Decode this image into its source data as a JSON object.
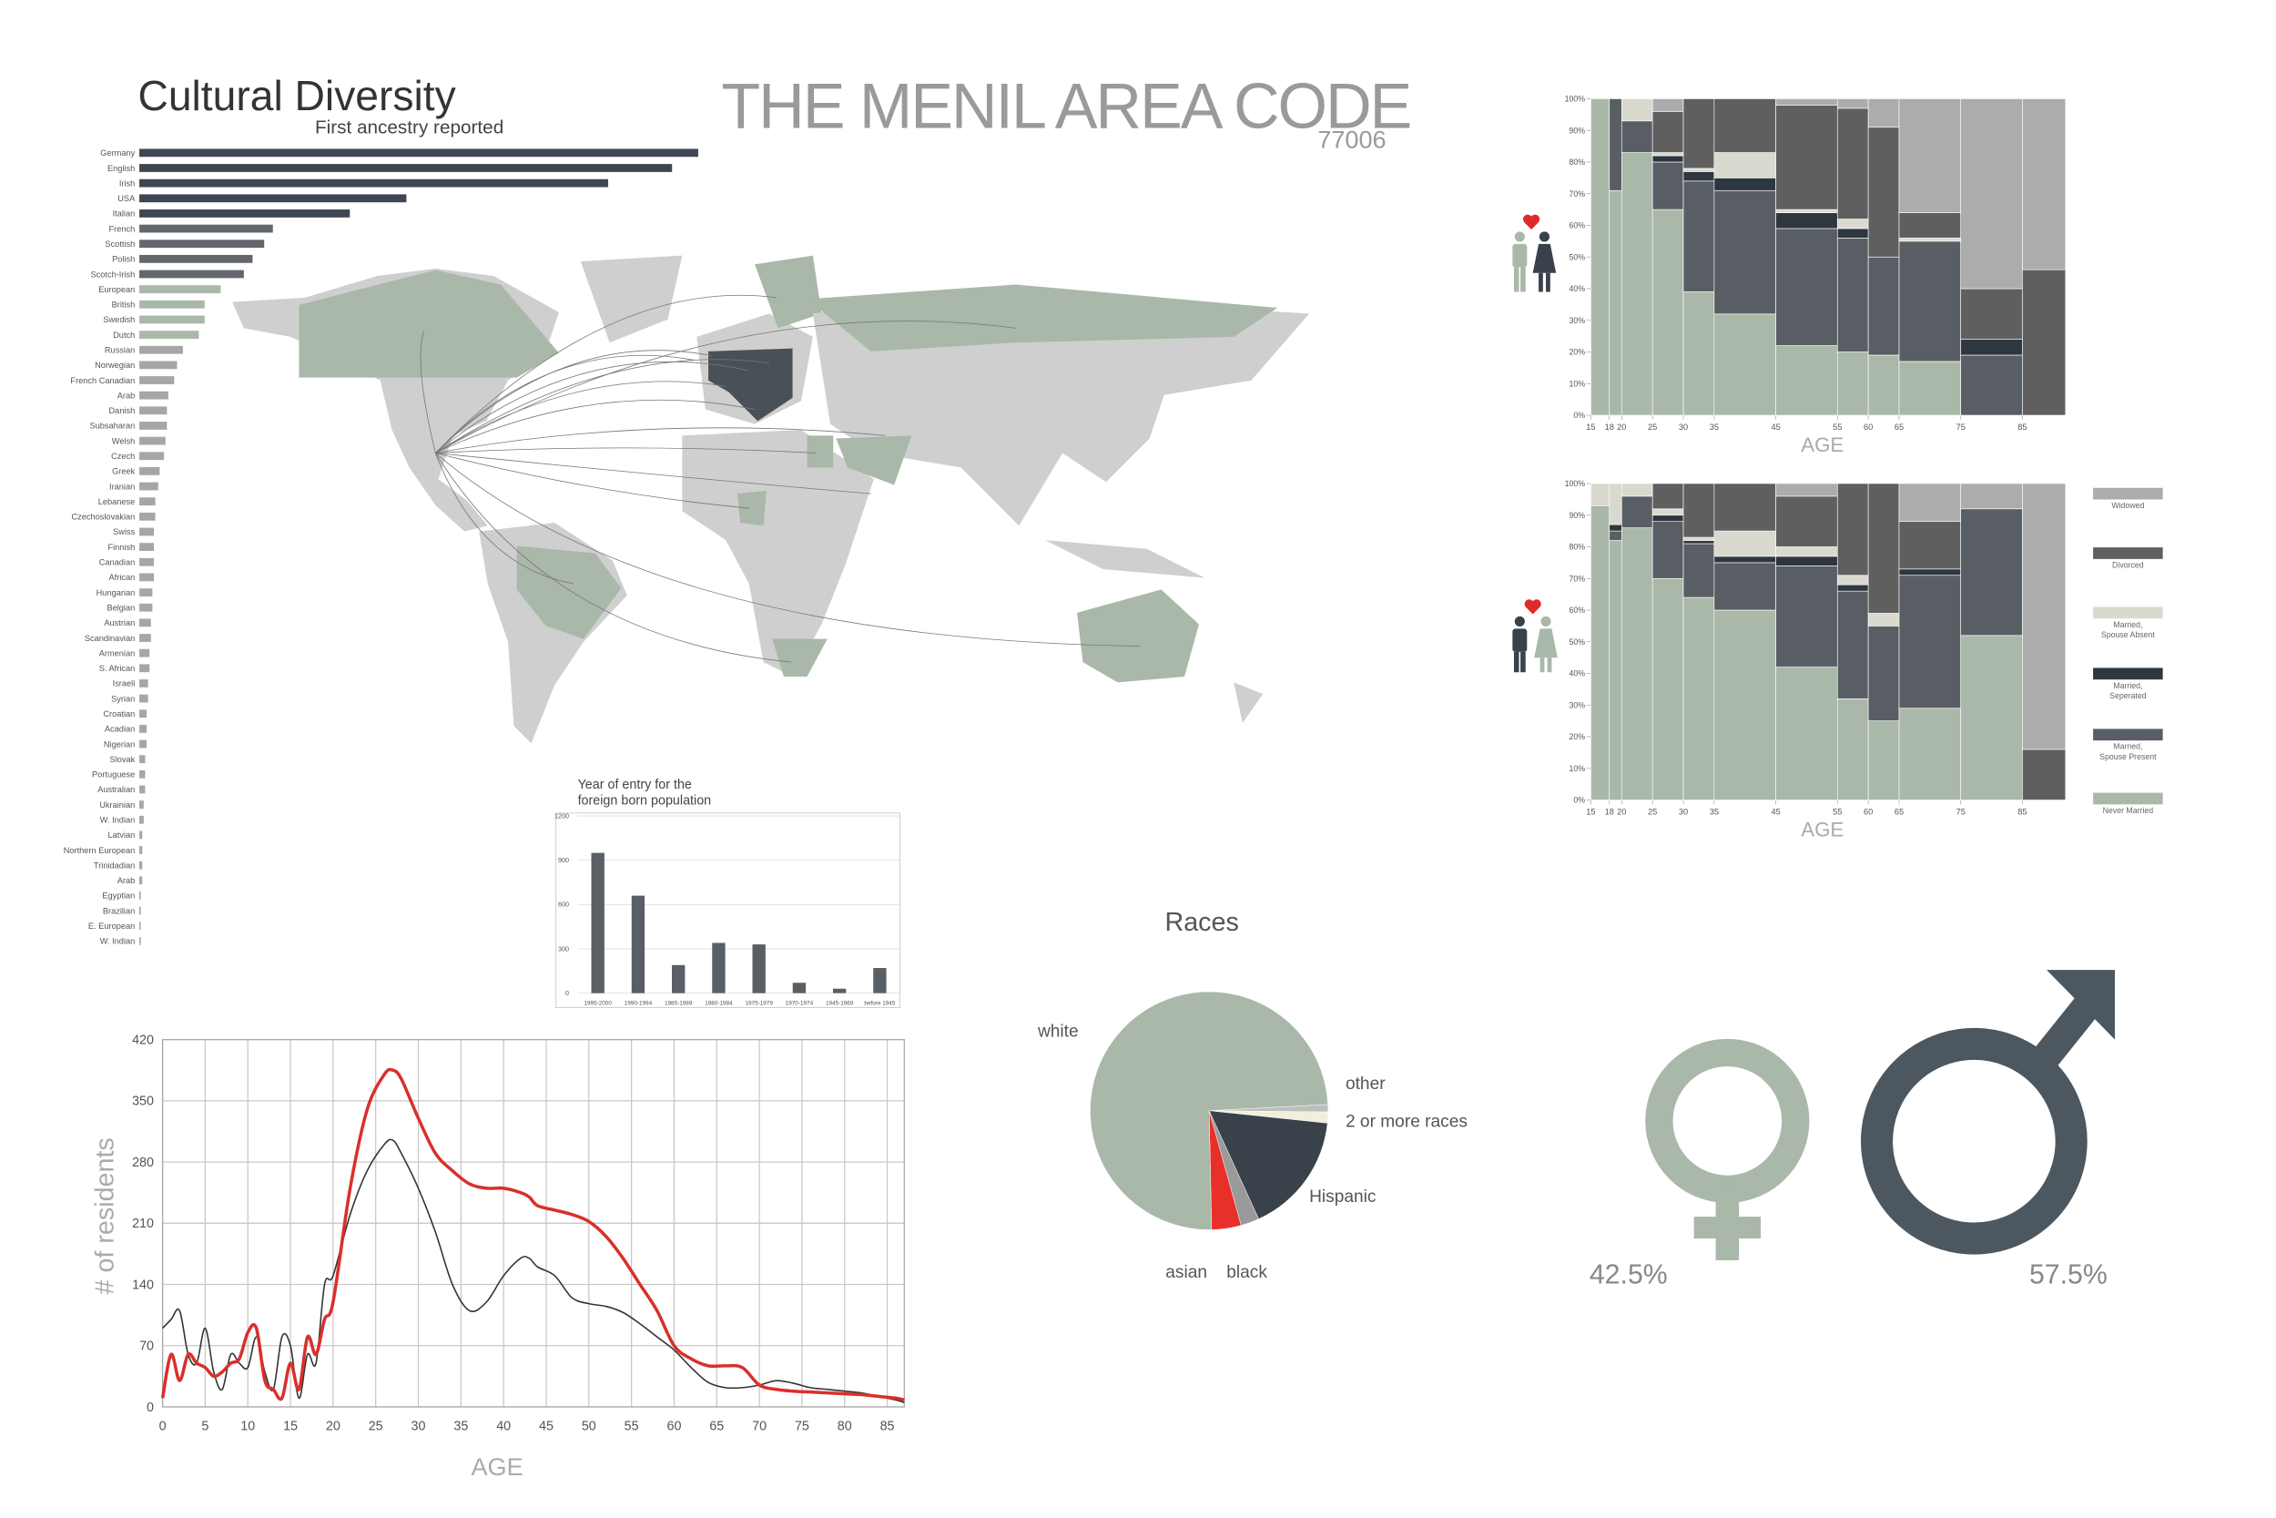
{
  "header": {
    "title": "THE MENIL AREA CODE",
    "subtitle": "77006"
  },
  "chart_data": [
    {
      "type": "bar",
      "orientation": "horizontal",
      "title": "Cultural Diversity",
      "subtitle": "First ancestry reported",
      "categories": [
        "Germany",
        "English",
        "Irish",
        "USA",
        "Italian",
        "French",
        "Scottish",
        "Polish",
        "Scotch-Irish",
        "European",
        "British",
        "Swedish",
        "Dutch",
        "Russian",
        "Norwegian",
        "French Canadian",
        "Arab",
        "Danish",
        "Subsaharan",
        "Welsh",
        "Czech",
        "Greek",
        "Iranian",
        "Lebanese",
        "Czechoslovakian",
        "Swiss",
        "Finnish",
        "Canadian",
        "African",
        "Hungarian",
        "Belgian",
        "Austrian",
        "Scandinavian",
        "Armenian",
        "S. African",
        "Israeli",
        "Syrian",
        "Croatian",
        "Acadian",
        "Nigerian",
        "Slovak",
        "Portuguese",
        "Australian",
        "Ukrainian",
        "W. Indian",
        "Latvian",
        "Northern European",
        "Trinidadian",
        "Arab",
        "Egyptian",
        "Brazilian",
        "E. European",
        "W. Indian"
      ],
      "values": [
        385,
        367,
        323,
        184,
        145,
        92,
        86,
        78,
        72,
        56,
        45,
        45,
        41,
        30,
        26,
        24,
        20,
        19,
        19,
        18,
        17,
        14,
        13,
        11,
        11,
        10,
        10,
        10,
        10,
        9,
        9,
        8,
        8,
        7,
        7,
        6,
        6,
        5,
        5,
        5,
        4,
        4,
        4,
        3,
        3,
        2,
        2,
        2,
        2,
        1,
        1,
        1,
        1
      ],
      "colors": [
        "#3e4751",
        "#3e4751",
        "#3e4751",
        "#3e4751",
        "#3e4751",
        "#63676b",
        "#63676b",
        "#63676b",
        "#63676b",
        "#a9b8a8",
        "#a9b8a8",
        "#a9b8a8",
        "#a9b8a8",
        "#a6a6a6",
        "#a6a6a6",
        "#a6a6a6",
        "#a6a6a6",
        "#a6a6a6",
        "#a6a6a6",
        "#a6a6a6",
        "#a6a6a6",
        "#a6a6a6",
        "#a6a6a6",
        "#a6a6a6",
        "#a6a6a6",
        "#a6a6a6",
        "#a6a6a6",
        "#a6a6a6",
        "#a6a6a6",
        "#a6a6a6",
        "#a6a6a6",
        "#a6a6a6",
        "#a6a6a6",
        "#a6a6a6",
        "#a6a6a6",
        "#a6a6a6",
        "#a6a6a6",
        "#a6a6a6",
        "#a6a6a6",
        "#a6a6a6",
        "#a6a6a6",
        "#a6a6a6",
        "#a6a6a6",
        "#a6a6a6",
        "#a6a6a6",
        "#a6a6a6",
        "#a6a6a6",
        "#a6a6a6",
        "#a6a6a6",
        "#a6a6a6",
        "#a6a6a6",
        "#a6a6a6",
        "#a6a6a6"
      ]
    },
    {
      "type": "bar",
      "orientation": "vertical",
      "title": [
        "Year of entry for the",
        "foreign born population"
      ],
      "categories": [
        "1995-2000",
        "1990-1994",
        "1985-1989",
        "1980-1984",
        "1975-1979",
        "1970-1974",
        "1945-1969",
        "before 1945"
      ],
      "values": [
        950,
        660,
        190,
        340,
        330,
        70,
        30,
        170
      ],
      "color": "#5a5f65",
      "ylim": [
        0,
        1200
      ],
      "yticks": [
        0,
        300,
        600,
        900,
        1200
      ],
      "grid": true
    },
    {
      "type": "line",
      "xlabel": "AGE",
      "ylabel": "# of residents",
      "x": [
        0,
        1,
        2,
        3,
        4,
        5,
        6,
        7,
        8,
        9,
        10,
        11,
        12,
        13,
        14,
        15,
        16,
        17,
        18,
        19,
        20,
        22,
        24,
        26,
        27,
        28,
        30,
        32,
        34,
        36,
        38,
        40,
        42,
        43,
        44,
        46,
        48,
        50,
        52,
        54,
        56,
        58,
        60,
        62,
        64,
        66,
        68,
        70,
        72,
        74,
        76,
        78,
        80,
        82,
        84,
        86,
        87
      ],
      "series": [
        {
          "color": "#333333",
          "values": [
            90,
            100,
            110,
            60,
            50,
            90,
            40,
            20,
            60,
            50,
            45,
            80,
            40,
            20,
            80,
            70,
            10,
            60,
            50,
            140,
            150,
            220,
            270,
            300,
            305,
            290,
            250,
            200,
            140,
            110,
            120,
            150,
            170,
            170,
            160,
            150,
            125,
            118,
            115,
            108,
            95,
            80,
            65,
            45,
            28,
            22,
            22,
            25,
            30,
            27,
            22,
            20,
            18,
            16,
            12,
            8,
            5
          ]
        },
        {
          "color": "#d9302a",
          "values": [
            10,
            60,
            30,
            60,
            50,
            45,
            35,
            40,
            50,
            55,
            85,
            90,
            30,
            20,
            10,
            50,
            20,
            80,
            60,
            100,
            120,
            250,
            340,
            380,
            385,
            375,
            330,
            290,
            270,
            255,
            250,
            250,
            245,
            240,
            230,
            225,
            220,
            212,
            195,
            170,
            140,
            110,
            70,
            55,
            47,
            47,
            45,
            25,
            20,
            18,
            17,
            16,
            15,
            14,
            12,
            10,
            8
          ]
        }
      ],
      "xlim": [
        0,
        87
      ],
      "xticks": [
        0,
        5,
        10,
        15,
        20,
        25,
        30,
        35,
        40,
        45,
        50,
        55,
        60,
        65,
        70,
        75,
        80,
        85
      ],
      "ylim": [
        0,
        420
      ],
      "yticks": [
        0,
        70,
        140,
        210,
        280,
        350,
        420
      ],
      "grid": true
    },
    {
      "type": "pie",
      "title": "Races",
      "categories": [
        "other",
        "2 or more races",
        "Hispanic",
        "black",
        "asian",
        "white"
      ],
      "values": [
        1,
        1.5,
        16.5,
        2.5,
        4,
        74.5
      ],
      "colors": [
        "#bdbdbd",
        "#f1eedc",
        "#39424a",
        "#9a9a9a",
        "#e8302a",
        "#a9b8a8"
      ]
    },
    {
      "type": "pictogram",
      "values": [
        42.5,
        57.5
      ],
      "value_labels": [
        "42.5%",
        "57.5%"
      ],
      "colors": [
        "#a9b8a8",
        "#4d575f"
      ]
    },
    {
      "type": "marimekko",
      "xlabel": "AGE",
      "xlim": [
        15,
        92
      ],
      "xticks": [
        15,
        18,
        20,
        25,
        30,
        35,
        45,
        55,
        60,
        65,
        75,
        85
      ],
      "ylim": [
        0,
        100
      ],
      "yticks": [
        {
          "value": 0,
          "label": "0%"
        },
        {
          "value": 10,
          "label": "10%"
        },
        {
          "value": 20,
          "label": "20%"
        },
        {
          "value": 30,
          "label": "30%"
        },
        {
          "value": 40,
          "label": "40%"
        },
        {
          "value": 50,
          "label": "50%"
        },
        {
          "value": 60,
          "label": "60%"
        },
        {
          "value": 70,
          "label": "70%"
        },
        {
          "value": 80,
          "label": "80%"
        },
        {
          "value": 90,
          "label": "90%"
        },
        {
          "value": 100,
          "label": "100%"
        }
      ],
      "series": [
        {
          "name": "Widowed",
          "color": "#acacac",
          "values": [
            0,
            0,
            0,
            4,
            0,
            0,
            2,
            3,
            9,
            36,
            60,
            54
          ]
        },
        {
          "name": "Divorced",
          "color": "#5f5f5f",
          "values": [
            0,
            0,
            0,
            13,
            22,
            17,
            33,
            35,
            41,
            8,
            16,
            46
          ]
        },
        {
          "name": "Married, Spouse Absent",
          "color": "#d9d9d0",
          "values": [
            0,
            0,
            7,
            1,
            1,
            8,
            1,
            3,
            0,
            1,
            0,
            0
          ]
        },
        {
          "name": "Married, Seperated",
          "color": "#2e3640",
          "values": [
            0,
            0,
            0,
            2,
            3,
            4,
            5,
            3,
            0,
            0,
            5,
            0
          ]
        },
        {
          "name": "Married, Spouse Present",
          "color": "#595e64",
          "values": [
            0,
            29,
            10,
            15,
            35,
            39,
            37,
            36,
            31,
            38,
            19,
            0
          ]
        },
        {
          "name": "Never Married",
          "color": "#a9b8a8",
          "values": [
            100,
            71,
            83,
            65,
            39,
            32,
            22,
            20,
            19,
            17,
            0,
            0
          ]
        }
      ]
    },
    {
      "type": "marimekko",
      "xlabel": "AGE",
      "legend": true,
      "xlim": [
        15,
        92
      ],
      "xticks": [
        15,
        18,
        20,
        25,
        30,
        35,
        45,
        55,
        60,
        65,
        75,
        85
      ],
      "ylim": [
        0,
        100
      ],
      "yticks": [
        {
          "value": 0,
          "label": "0%"
        },
        {
          "value": 10,
          "label": "10%"
        },
        {
          "value": 20,
          "label": "20%"
        },
        {
          "value": 30,
          "label": "30%"
        },
        {
          "value": 40,
          "label": "40%"
        },
        {
          "value": 50,
          "label": "50%"
        },
        {
          "value": 60,
          "label": "60%"
        },
        {
          "value": 70,
          "label": "70%"
        },
        {
          "value": 80,
          "label": "80%"
        },
        {
          "value": 90,
          "label": "90%"
        },
        {
          "value": 100,
          "label": "100%"
        }
      ],
      "series": [
        {
          "name": "Widowed",
          "color": "#acacac",
          "values": [
            0,
            0,
            0,
            0,
            0,
            0,
            4,
            0,
            0,
            12,
            8,
            84
          ]
        },
        {
          "name": "Divorced",
          "color": "#5f5f5f",
          "values": [
            0,
            0,
            0,
            8,
            17,
            15,
            16,
            29,
            41,
            15,
            0,
            16
          ]
        },
        {
          "name": "Married, Spouse Absent",
          "color": "#d9d9d0",
          "values": [
            7,
            13,
            4,
            2,
            1,
            8,
            3,
            3,
            4,
            0,
            0,
            0
          ]
        },
        {
          "name": "Married, Seperated",
          "color": "#2e3640",
          "values": [
            0,
            2,
            0,
            2,
            1,
            2,
            3,
            2,
            0,
            2,
            0,
            0
          ]
        },
        {
          "name": "Married, Spouse Present",
          "color": "#595e64",
          "values": [
            0,
            3,
            10,
            18,
            17,
            15,
            32,
            34,
            30,
            42,
            40,
            0
          ]
        },
        {
          "name": "Never Married",
          "color": "#a9b8a8",
          "values": [
            93,
            82,
            86,
            70,
            64,
            60,
            42,
            32,
            25,
            29,
            52,
            0
          ]
        }
      ]
    }
  ]
}
